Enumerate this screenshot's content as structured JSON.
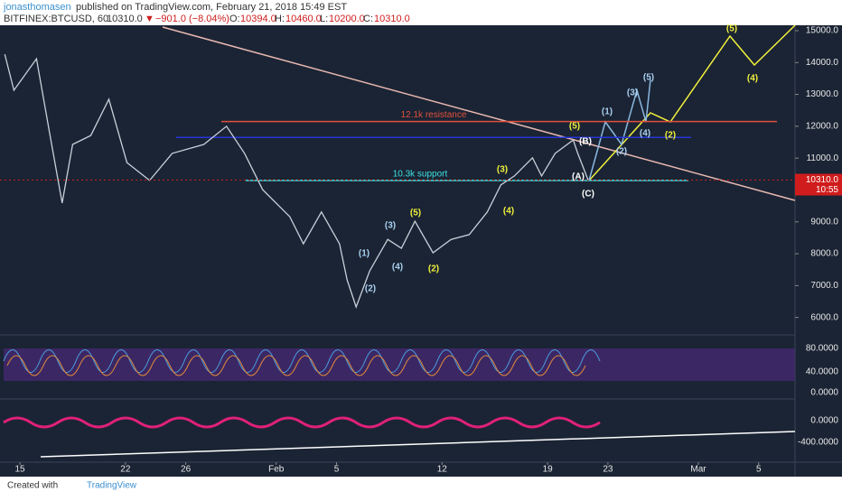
{
  "header": {
    "author": "jonasthomasen",
    "published": "published on TradingView.com, February 21, 2018 15:49 EST",
    "symbol": "BITFINEX:BTCUSD, 60",
    "last": "10310.0",
    "arrow": "▼",
    "change": "−901.0 (−8.04%)",
    "o_label": "O:",
    "o": "10394.0",
    "h_label": "H:",
    "h": "10460.0",
    "l_label": "L:",
    "l": "10200.0",
    "c_label": "C:",
    "c": "10310.0"
  },
  "chart_data": {
    "type": "line",
    "color": "#c8d0da",
    "x": [
      -1.0,
      -0.4,
      1.1,
      2.0,
      2.8,
      3.5,
      4.7,
      5.9,
      7.1,
      8.6,
      10.1,
      12.2,
      13.7,
      14.9,
      16.1,
      17.9,
      18.8,
      20.0,
      21.2,
      21.7,
      22.3,
      23.2,
      24.4,
      25.3,
      26.2,
      27.4,
      28.6,
      29.8,
      31.0,
      31.9,
      32.8,
      34.0,
      34.6,
      35.5,
      36.7,
      37.0,
      37.7
    ],
    "values": [
      14260,
      13130,
      14120,
      11710,
      9590,
      11430,
      11710,
      12850,
      10860,
      10300,
      11150,
      11430,
      12000,
      11150,
      10010,
      9160,
      8310,
      9310,
      8310,
      7180,
      6330,
      7460,
      8450,
      8170,
      9020,
      8030,
      8450,
      8600,
      9310,
      10160,
      10440,
      11010,
      10440,
      11150,
      11570,
      11150,
      10300
    ],
    "xlim": [
      -1.32,
      51.41
    ],
    "ylim": [
      5480,
      15170
    ],
    "xticks": [
      {
        "value": 0,
        "label": "15"
      },
      {
        "value": 7,
        "label": "22"
      },
      {
        "value": 11,
        "label": "26"
      },
      {
        "value": 17,
        "label": "Feb"
      },
      {
        "value": 21,
        "label": "5"
      },
      {
        "value": 28,
        "label": "12"
      },
      {
        "value": 35,
        "label": "19"
      },
      {
        "value": 39,
        "label": "23"
      },
      {
        "value": 45,
        "label": "Mar"
      },
      {
        "value": 49,
        "label": "5"
      }
    ],
    "yticks": [
      {
        "value": 6000,
        "label": "6000.0"
      },
      {
        "value": 7000,
        "label": "7000.0"
      },
      {
        "value": 8000,
        "label": "8000.0"
      },
      {
        "value": 9000,
        "label": "9000.0"
      },
      {
        "value": 11000,
        "label": "11000.0"
      },
      {
        "value": 12000,
        "label": "12000.0"
      },
      {
        "value": 13000,
        "label": "13000.0"
      },
      {
        "value": 14000,
        "label": "14000.0"
      },
      {
        "value": 15000,
        "label": "15000.0"
      }
    ],
    "price_label": {
      "value": 10310,
      "label": "10310.0",
      "timer": "10:55"
    },
    "levels": [
      {
        "label": "12.1k resistance",
        "value": 12150,
        "color": "#e0503c"
      },
      {
        "value": 11650,
        "color": "#2636d8"
      },
      {
        "label": "10.3k support",
        "value": 10300,
        "color": "#3ee0e0"
      }
    ],
    "waves": [
      "(5)",
      "(4)",
      "(2)",
      "(5)",
      "(3)",
      "(4)",
      "(5)",
      "(2)",
      "(1)",
      "(3)",
      "(5)",
      "(4)",
      "(2)",
      "(B)",
      "(A)",
      "(C)",
      "(1)",
      "(3)",
      "(4)",
      "(2)"
    ],
    "stoch_ticks": [
      "80.0000",
      "40.0000",
      "0.0000"
    ],
    "macd_ticks": [
      "0.0000",
      "-400.0000"
    ]
  },
  "footer": {
    "created": "Created with",
    "brand": "TradingView"
  }
}
